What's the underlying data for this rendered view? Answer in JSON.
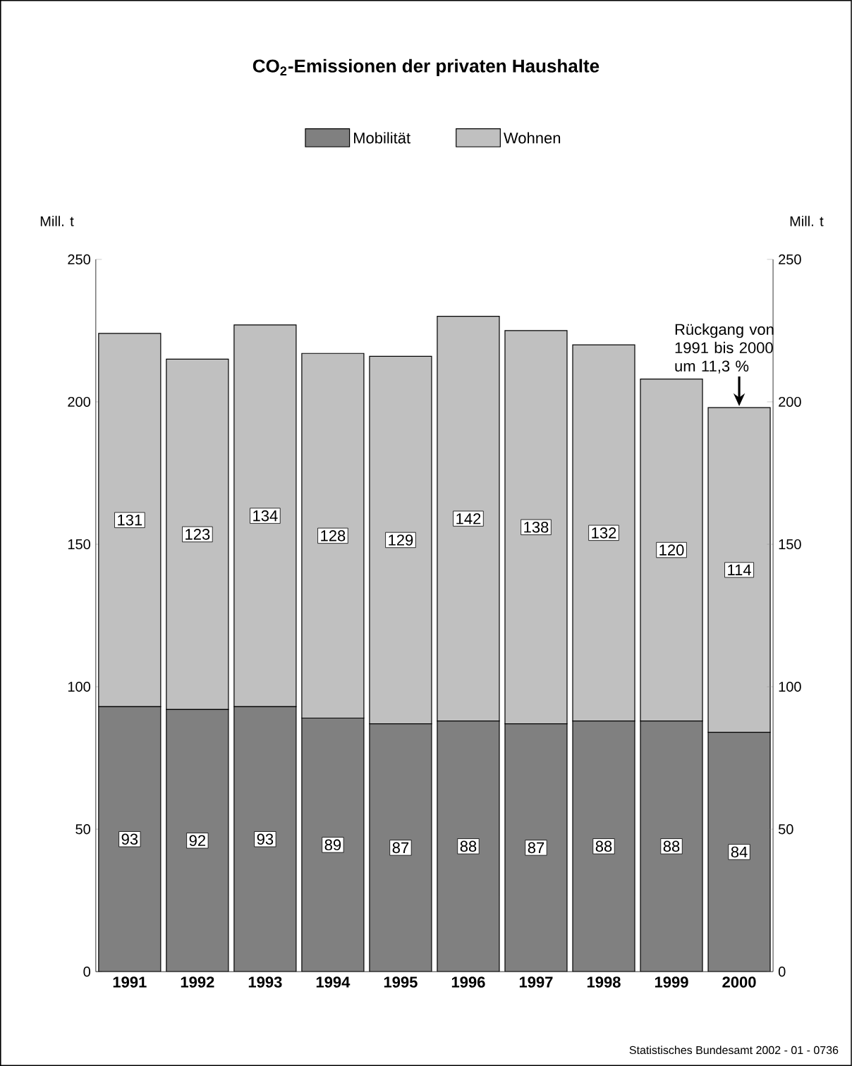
{
  "chart_data": {
    "type": "bar",
    "stacked": true,
    "title": "CO$_{2}$-Emissionen der privaten Haushalte",
    "ylabel": "Mill. t",
    "y2label": "Mill. t",
    "categories": [
      "1991",
      "1992",
      "1993",
      "1994",
      "1995",
      "1996",
      "1997",
      "1998",
      "1999",
      "2000"
    ],
    "series": [
      {
        "name": "Mobilität",
        "color": "#808080",
        "values": [
          93,
          92,
          93,
          89,
          87,
          88,
          87,
          88,
          88,
          84
        ]
      },
      {
        "name": "Wohnen",
        "color": "#c0c0c0",
        "values": [
          131,
          123,
          134,
          128,
          129,
          142,
          138,
          132,
          120,
          114
        ]
      }
    ],
    "ylim": [
      0,
      250
    ],
    "yticks": [
      0,
      50,
      100,
      150,
      200,
      250
    ],
    "y2lim": [
      0,
      250
    ],
    "y2ticks": [
      0,
      50,
      100,
      150,
      200,
      250
    ],
    "data_labels": true,
    "legend": "top",
    "annotations": [
      {
        "text": "Rückgang von 1991 bis 2000 um 11,3 %",
        "x": "2000",
        "y": 198
      },
      "Statistisches Bundesamt 2002 - 01 - 0736"
    ]
  }
}
